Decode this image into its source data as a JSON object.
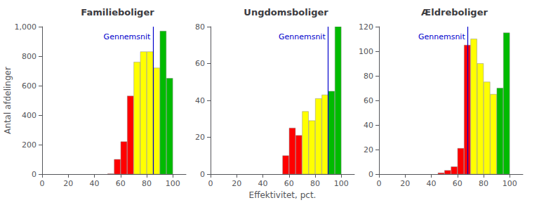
{
  "chart_data": [
    {
      "type": "histogram",
      "title": "Familieboliger",
      "ylabel": "Antal afdelinger",
      "bins": [
        50,
        55,
        60,
        65,
        70,
        75,
        80,
        85,
        90,
        95,
        100
      ],
      "values": [
        2,
        100,
        220,
        530,
        760,
        830,
        830,
        720,
        970,
        650
      ],
      "colors": [
        "#FF0000",
        "#FF0000",
        "#FF0000",
        "#FF0000",
        "#FFFF00",
        "#FFFF00",
        "#FFFF00",
        "#FFFF00",
        "#00BB00",
        "#00BB00"
      ],
      "xlim": [
        0,
        110
      ],
      "xticks": [
        0,
        20,
        40,
        60,
        80,
        100
      ],
      "ylim": [
        0,
        1000
      ],
      "yticks": [
        0,
        200,
        400,
        600,
        800,
        1000
      ],
      "vline": {
        "x": 85,
        "label": "Gennemsnit",
        "color": "#0000CC"
      },
      "grid": false
    },
    {
      "type": "histogram",
      "title": "Ungdomsboliger",
      "xlabel": "Effektivitet, pct.",
      "bins": [
        55,
        60,
        65,
        70,
        75,
        80,
        85,
        90,
        95,
        100
      ],
      "values": [
        10,
        25,
        21,
        34,
        29,
        41,
        43,
        45,
        80
      ],
      "colors": [
        "#FF0000",
        "#FF0000",
        "#FF0000",
        "#FFFF00",
        "#FFFF00",
        "#FFFF00",
        "#FFFF00",
        "#00BB00",
        "#00BB00"
      ],
      "xlim": [
        0,
        110
      ],
      "xticks": [
        0,
        20,
        40,
        60,
        80,
        100
      ],
      "ylim": [
        0,
        80
      ],
      "yticks": [
        0,
        20,
        40,
        60,
        80
      ],
      "vline": {
        "x": 90,
        "label": "Gennemsnit",
        "color": "#0000CC"
      },
      "grid": false
    },
    {
      "type": "histogram",
      "title": "Ældreboliger",
      "bins": [
        45,
        50,
        55,
        60,
        65,
        70,
        75,
        80,
        85,
        90,
        95,
        100
      ],
      "values": [
        1,
        3,
        6,
        21,
        105,
        110,
        90,
        75,
        65,
        70,
        115
      ],
      "colors": [
        "#FF0000",
        "#FF0000",
        "#FF0000",
        "#FF0000",
        "#FF0000",
        "#FFFF00",
        "#FFFF00",
        "#FFFF00",
        "#FFFF00",
        "#00BB00",
        "#00BB00"
      ],
      "xlim": [
        0,
        110
      ],
      "xticks": [
        0,
        20,
        40,
        60,
        80,
        100
      ],
      "ylim": [
        0,
        120
      ],
      "yticks": [
        0,
        20,
        40,
        60,
        80,
        100,
        120
      ],
      "vline": {
        "x": 68,
        "label": "Gennemsnit",
        "color": "#0000CC"
      },
      "grid": false
    }
  ]
}
